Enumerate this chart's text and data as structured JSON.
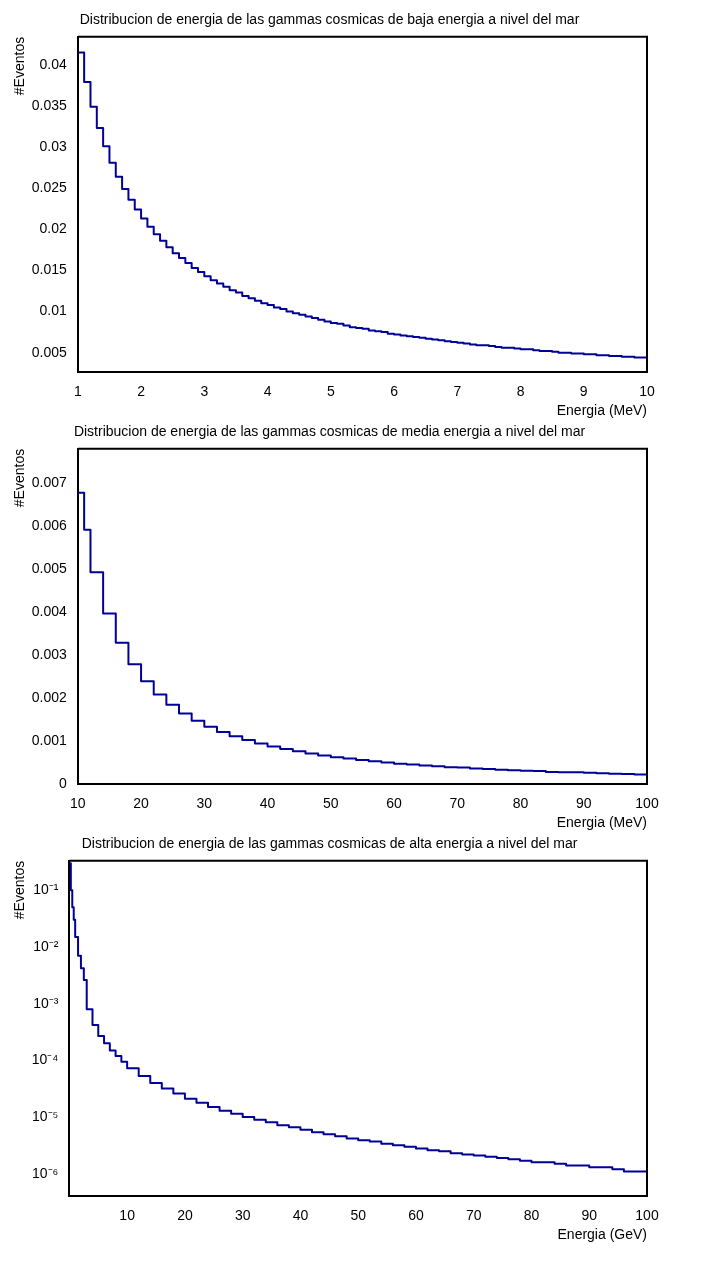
{
  "chart_data": [
    {
      "type": "histogram",
      "title": "Distribucion de energia de las gammas cosmicas de baja energia a nivel del mar",
      "xlabel": "Energia (MeV)",
      "ylabel": "#Eventos",
      "color": "#000099",
      "bins": [
        1.0,
        1.1,
        1.2,
        1.3,
        1.4,
        1.5,
        1.6,
        1.7,
        1.8,
        1.9,
        2.0,
        2.1,
        2.2,
        2.3,
        2.4,
        2.5,
        2.6,
        2.7,
        2.8,
        2.9,
        3.0,
        3.1,
        3.2,
        3.3,
        3.4,
        3.5,
        3.6,
        3.7,
        3.8,
        3.9,
        4.0,
        4.1,
        4.2,
        4.3,
        4.4,
        4.5,
        4.6,
        4.7,
        4.8,
        4.9,
        5.0,
        5.1,
        5.2,
        5.3,
        5.4,
        5.5,
        5.6,
        5.7,
        5.8,
        5.9,
        6.0,
        6.1,
        6.2,
        6.3,
        6.4,
        6.5,
        6.6,
        6.7,
        6.8,
        6.9,
        7.0,
        7.1,
        7.2,
        7.3,
        7.4,
        7.5,
        7.6,
        7.7,
        7.8,
        7.9,
        8.0,
        8.1,
        8.2,
        8.3,
        8.4,
        8.5,
        8.6,
        8.7,
        8.8,
        8.9,
        9.0,
        9.1,
        9.2,
        9.3,
        9.4,
        9.5,
        9.6,
        9.7,
        9.8,
        9.9,
        10.0
      ],
      "values": [
        0.0415,
        0.0379,
        0.0349,
        0.0323,
        0.0301,
        0.0281,
        0.0264,
        0.0249,
        0.0236,
        0.0224,
        0.0213,
        0.0203,
        0.0194,
        0.0186,
        0.0178,
        0.0171,
        0.0165,
        0.0159,
        0.0153,
        0.0148,
        0.0143,
        0.0138,
        0.0134,
        0.013,
        0.0126,
        0.0123,
        0.0119,
        0.0116,
        0.0113,
        0.011,
        0.0108,
        0.0105,
        0.0103,
        0.01,
        0.0098,
        0.0096,
        0.0094,
        0.0092,
        0.009,
        0.0088,
        0.0086,
        0.0085,
        0.0083,
        0.0081,
        0.008,
        0.0079,
        0.0077,
        0.0076,
        0.0075,
        0.0073,
        0.0072,
        0.0071,
        0.007,
        0.0069,
        0.0068,
        0.0067,
        0.0066,
        0.0065,
        0.0064,
        0.0063,
        0.0062,
        0.0061,
        0.006,
        0.0059,
        0.0059,
        0.0058,
        0.0057,
        0.0056,
        0.0056,
        0.0055,
        0.0054,
        0.0054,
        0.0053,
        0.0052,
        0.0052,
        0.0051,
        0.005,
        0.005,
        0.0049,
        0.0049,
        0.0048,
        0.0048,
        0.0047,
        0.0047,
        0.0046,
        0.0046,
        0.0045,
        0.0045,
        0.0044,
        0.0044
      ],
      "xlim": [
        1,
        10
      ],
      "xticks": [
        1,
        2,
        3,
        4,
        5,
        6,
        7,
        8,
        9,
        10
      ],
      "ylim": [
        0.0026,
        0.0434
      ],
      "yticks": [
        0.005,
        0.01,
        0.015,
        0.02,
        0.025,
        0.03,
        0.035,
        0.04
      ]
    },
    {
      "type": "histogram",
      "title": "Distribucion de energia de las gammas cosmicas de media energia a nivel del mar",
      "xlabel": "Energia (MeV)",
      "ylabel": "#Eventos",
      "color": "#000099",
      "bins": [
        10,
        11,
        12,
        14,
        16,
        18,
        20,
        22,
        24,
        26,
        28,
        30,
        32,
        34,
        36,
        38,
        40,
        42,
        44,
        46,
        48,
        50,
        52,
        54,
        56,
        58,
        60,
        62,
        64,
        66,
        68,
        70,
        72,
        74,
        76,
        78,
        80,
        82,
        84,
        86,
        88,
        90,
        92,
        94,
        96,
        98,
        100
      ],
      "values": [
        0.00678,
        0.00592,
        0.00493,
        0.00397,
        0.00329,
        0.00279,
        0.0024,
        0.00209,
        0.00185,
        0.00165,
        0.00148,
        0.00134,
        0.00122,
        0.00112,
        0.00103,
        0.00095,
        0.00088,
        0.00082,
        0.00077,
        0.00072,
        0.00067,
        0.00063,
        0.0006,
        0.00057,
        0.00054,
        0.00051,
        0.00048,
        0.00046,
        0.00044,
        0.00042,
        0.0004,
        0.00039,
        0.00037,
        0.00036,
        0.00034,
        0.00033,
        0.00032,
        0.00031,
        0.00029,
        0.00028,
        0.00028,
        0.00027,
        0.00026,
        0.00025,
        0.00024,
        0.00023
      ],
      "xlim": [
        10,
        100
      ],
      "xticks": [
        10,
        20,
        30,
        40,
        50,
        60,
        70,
        80,
        90,
        100
      ],
      "ylim": [
        0,
        0.0078
      ],
      "yticks": [
        0,
        0.001,
        0.002,
        0.003,
        0.004,
        0.005,
        0.006,
        0.007
      ]
    },
    {
      "type": "histogram",
      "title": "Distribucion de energia de las gammas cosmicas de alta energia a nivel del mar",
      "xlabel": "Energia (GeV)",
      "ylabel": "#Eventos",
      "color": "#000099",
      "log": "y",
      "bins": [
        0,
        0.25,
        0.5,
        0.75,
        1,
        1.5,
        2,
        2.5,
        3,
        4,
        5,
        6,
        7,
        8,
        9,
        10,
        12,
        14,
        16,
        18,
        20,
        22,
        24,
        26,
        28,
        30,
        32,
        34,
        36,
        38,
        40,
        42,
        44,
        46,
        48,
        50,
        52,
        54,
        56,
        58,
        60,
        62,
        64,
        66,
        68,
        70,
        72,
        74,
        76,
        78,
        80,
        82,
        84,
        86,
        88,
        90,
        92,
        94,
        96,
        98,
        100
      ],
      "values": [
        0.3,
        0.1,
        0.05,
        0.03,
        0.015,
        0.007,
        0.0042,
        0.0026,
        0.0008,
        0.00042,
        0.00027,
        0.0002,
        0.00015,
        0.00012,
        9.5e-05,
        7.3e-05,
        5.3e-05,
        4e-05,
        3.2e-05,
        2.6e-05,
        2.1e-05,
        1.8e-05,
        1.5e-05,
        1.3e-05,
        1.15e-05,
        1e-05,
        9e-06,
        8.1e-06,
        7.2e-06,
        6.6e-06,
        6e-06,
        5.4e-06,
        5e-06,
        4.6e-06,
        4.2e-06,
        3.9e-06,
        3.7e-06,
        3.4e-06,
        3.2e-06,
        3e-06,
        2.8e-06,
        2.6e-06,
        2.5e-06,
        2.3e-06,
        2.2e-06,
        2.1e-06,
        2e-06,
        1.9e-06,
        1.8e-06,
        1.7e-06,
        1.6e-06,
        1.6e-06,
        1.5e-06,
        1.4e-06,
        1.4e-06,
        1.3e-06,
        1.3e-06,
        1.2e-06,
        1.1e-06,
        1.1e-06
      ],
      "xlim": [
        0,
        100
      ],
      "xticks": [
        10,
        20,
        30,
        40,
        50,
        60,
        70,
        80,
        90,
        100
      ],
      "ylim": [
        4e-07,
        0.33
      ],
      "yticks": [
        {
          "value": 0.1,
          "label": "10⁻¹"
        },
        {
          "value": 0.01,
          "label": "10⁻²"
        },
        {
          "value": 0.001,
          "label": "10⁻³"
        },
        {
          "value": 0.0001,
          "label": "10⁻⁴"
        },
        {
          "value": 1e-05,
          "label": "10⁻⁵"
        },
        {
          "value": 1e-06,
          "label": "10⁻⁶"
        }
      ]
    }
  ]
}
